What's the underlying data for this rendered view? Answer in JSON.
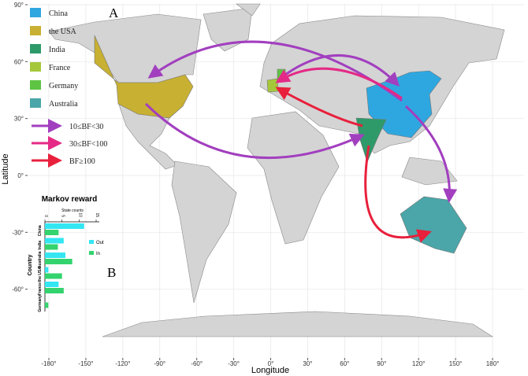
{
  "panel_labels": {
    "a": "A",
    "b": "B"
  },
  "map": {
    "xlabel": "Longitude",
    "ylabel": "Latitude",
    "xlim": [
      -180,
      180
    ],
    "ylim": [
      -90,
      90
    ],
    "xticks": [
      {
        "value": -180,
        "label": "-180°"
      },
      {
        "value": -150,
        "label": "-150°"
      },
      {
        "value": -120,
        "label": "-120°"
      },
      {
        "value": -90,
        "label": "-90°"
      },
      {
        "value": -60,
        "label": "-60°"
      },
      {
        "value": -30,
        "label": "-30°"
      },
      {
        "value": 0,
        "label": "0°"
      },
      {
        "value": 30,
        "label": "30°"
      },
      {
        "value": 60,
        "label": "60°"
      },
      {
        "value": 90,
        "label": "90°"
      },
      {
        "value": 120,
        "label": "120°"
      },
      {
        "value": 150,
        "label": "150°"
      },
      {
        "value": 180,
        "label": "180°"
      }
    ],
    "yticks": [
      {
        "value": 90,
        "label": "90°"
      },
      {
        "value": 60,
        "label": "60°"
      },
      {
        "value": 30,
        "label": "30°"
      },
      {
        "value": 0,
        "label": "0°"
      },
      {
        "value": -30,
        "label": "-30°"
      },
      {
        "value": -60,
        "label": "-60°"
      }
    ],
    "countries": [
      {
        "name": "China",
        "color": "#2ea7e0"
      },
      {
        "name": "the USA",
        "color": "#c8b032"
      },
      {
        "name": "India",
        "color": "#2e9a6a"
      },
      {
        "name": "France",
        "color": "#a5c83a"
      },
      {
        "name": "Germany",
        "color": "#5ec443"
      },
      {
        "name": "Australia",
        "color": "#4aa6a8"
      }
    ],
    "arrows": [
      {
        "label": "10≤BF<30",
        "color": "#a23fbf"
      },
      {
        "label": "30≤BF<100",
        "color": "#e42a86"
      },
      {
        "label": "BF≥100",
        "color": "#e8203c"
      }
    ]
  },
  "chart_data": {
    "type": "barh",
    "title": "Markov reward",
    "xlabel": "State counts",
    "ylabel": "Country",
    "categories": [
      "China",
      "India",
      "Australia",
      "the USA",
      "France",
      "Germany"
    ],
    "xlim": [
      0,
      15
    ],
    "xticks": [
      0,
      5,
      10,
      15
    ],
    "series": [
      {
        "name": "Out",
        "color": "#33e6f2",
        "values": [
          11.5,
          5.5,
          6,
          1,
          4,
          0
        ]
      },
      {
        "name": "In",
        "color": "#33d36e",
        "values": [
          4,
          3.8,
          8,
          5,
          5.5,
          1
        ]
      }
    ]
  }
}
